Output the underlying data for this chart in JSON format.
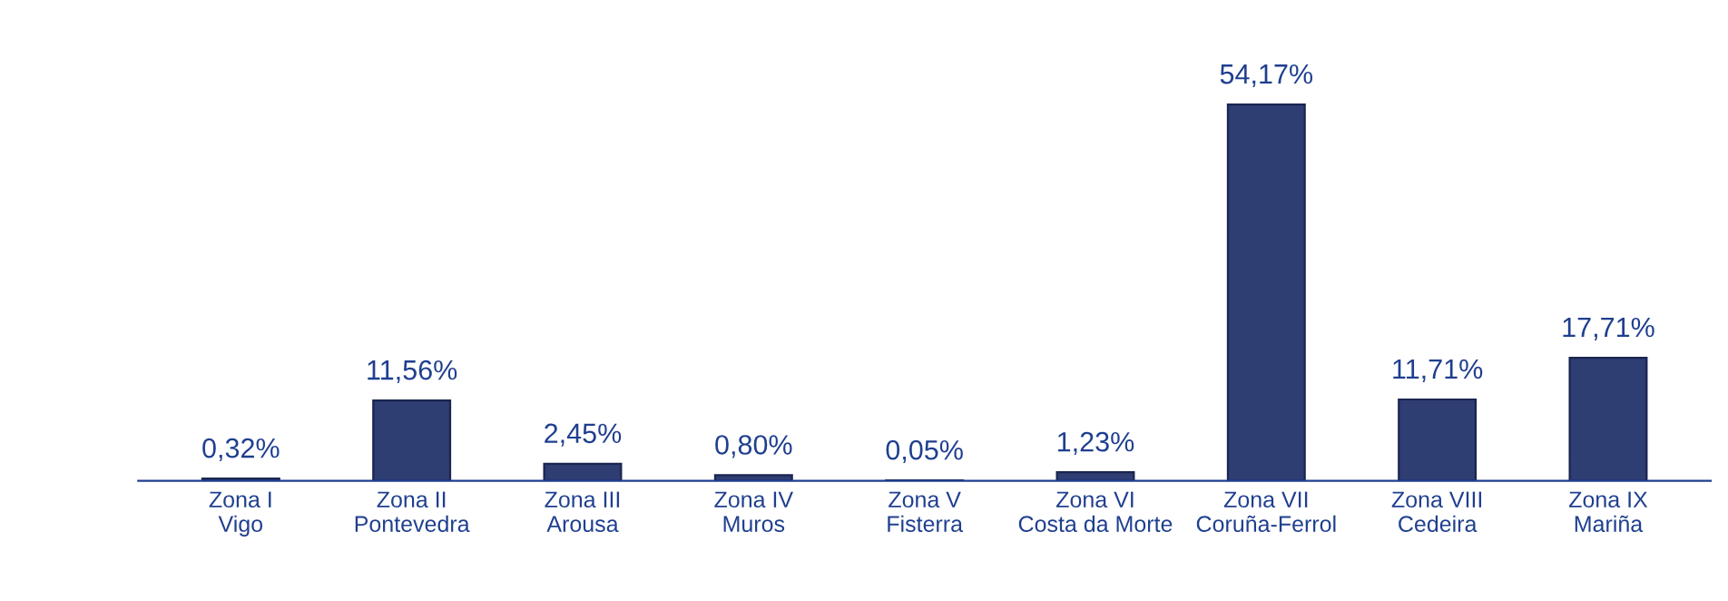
{
  "chart_data": {
    "type": "bar",
    "categories": [
      "Zona I\nVigo",
      "Zona II\nPontevedra",
      "Zona III\nArousa",
      "Zona IV\nMuros",
      "Zona V\nFisterra",
      "Zona VI\nCosta da Morte",
      "Zona VII\nCoruña-Ferrol",
      "Zona VIII\nCedeira",
      "Zona IX\nMariña"
    ],
    "values": [
      0.32,
      11.56,
      2.45,
      0.8,
      0.05,
      1.23,
      54.17,
      11.71,
      17.71
    ],
    "value_labels": [
      "0,32%",
      "11,56%",
      "2,45%",
      "0,80%",
      "0,05%",
      "1,23%",
      "54,17%",
      "11,71%",
      "17,71%"
    ],
    "color": "#2e3d72",
    "grid": false,
    "legend": false
  }
}
